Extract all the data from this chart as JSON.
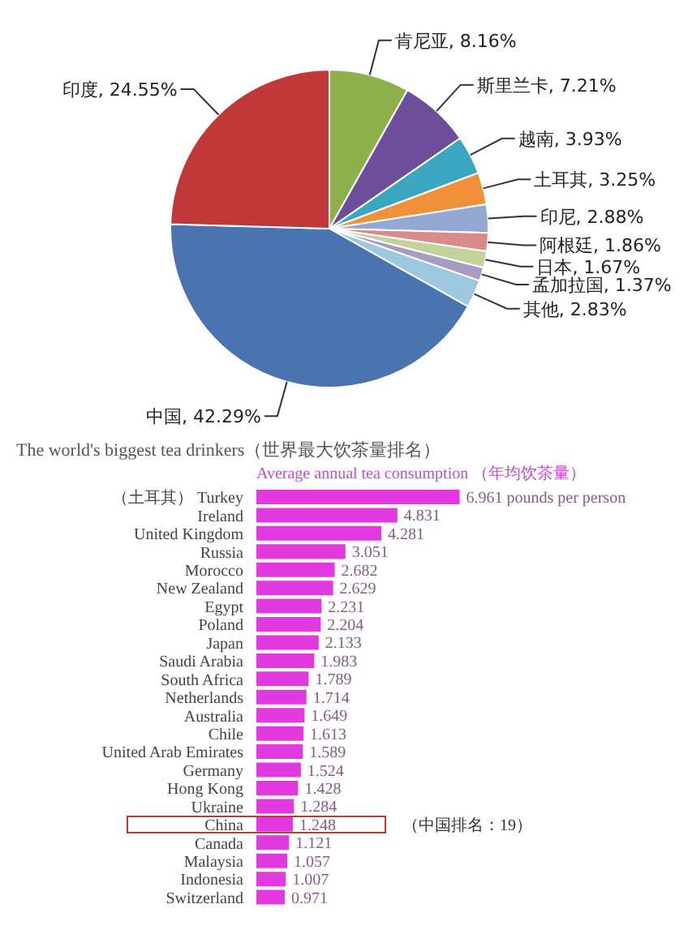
{
  "chart_data": [
    {
      "type": "pie",
      "categories": [
        "肯尼亚",
        "斯里兰卡",
        "越南",
        "土耳其",
        "印尼",
        "阿根廷",
        "日本",
        "孟加拉国",
        "其他",
        "中国",
        "印度"
      ],
      "values": [
        8.16,
        7.21,
        3.93,
        3.25,
        2.88,
        1.86,
        1.67,
        1.37,
        2.83,
        42.29,
        24.55
      ],
      "colors": [
        "#8db04b",
        "#6d4e9a",
        "#3aa6c0",
        "#f0913a",
        "#94a8d4",
        "#d98a8a",
        "#c2d39a",
        "#a89cc4",
        "#9cc8e0",
        "#4a74b0",
        "#c0383a"
      ],
      "value_labels": [
        ", 8.16%",
        ", 7.21%",
        ", 3.93%",
        ", 3.25%",
        ", 2.88%",
        ", 1.86%",
        ", 1.67%",
        ", 1.37%",
        ", 2.83%",
        ", 42.29%",
        ", 24.55%"
      ]
    },
    {
      "type": "bar",
      "orientation": "horizontal",
      "title": "The world's biggest tea drinkers（世界最大饮茶量排名）",
      "subtitle": "Average annual tea consumption （年均饮茶量）",
      "categories": [
        "（土耳其） Turkey",
        "Ireland",
        "United Kingdom",
        "Russia",
        "Morocco",
        "New Zealand",
        "Egypt",
        "Poland",
        "Japan",
        "Saudi Arabia",
        "South Africa",
        "Netherlands",
        "Australia",
        "Chile",
        "United Arab Emirates",
        "Germany",
        "Hong Kong",
        "Ukraine",
        "China",
        "Canada",
        "Malaysia",
        "Indonesia",
        "Switzerland"
      ],
      "values": [
        6.961,
        4.831,
        4.281,
        3.051,
        2.682,
        2.629,
        2.231,
        2.204,
        2.133,
        1.983,
        1.789,
        1.714,
        1.649,
        1.613,
        1.589,
        1.524,
        1.428,
        1.284,
        1.248,
        1.121,
        1.057,
        1.007,
        0.971
      ],
      "value_labels": [
        "6.961 pounds per person",
        "4.831",
        "4.281",
        "3.051",
        "2.682",
        "2.629",
        "2.231",
        "2.204",
        "2.133",
        "1.983",
        "1.789",
        "1.714",
        "1.649",
        "1.613",
        "1.589",
        "1.524",
        "1.428",
        "1.284",
        "1.248",
        "1.121",
        "1.057",
        "1.007",
        "0.971"
      ],
      "color": "#e23ae0",
      "annotations": [
        "（中国排名：19）"
      ]
    }
  ]
}
